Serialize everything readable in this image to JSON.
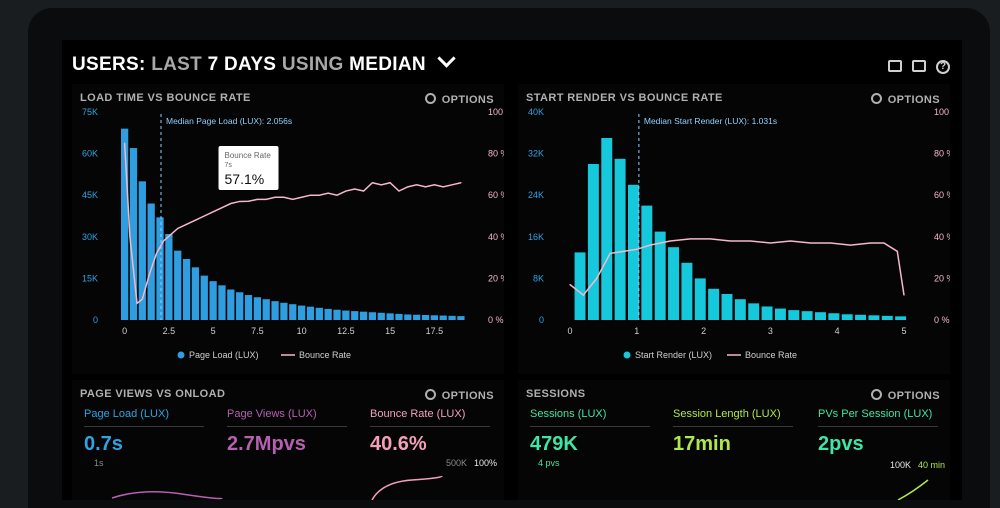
{
  "header": {
    "users": "USERS:",
    "last": "LAST",
    "days": "7 DAYS",
    "using": "USING",
    "median": "MEDIAN"
  },
  "panel1": {
    "title": "LOAD TIME VS BOUNCE RATE",
    "options": "OPTIONS"
  },
  "panel2": {
    "title": "START RENDER VS BOUNCE RATE",
    "options": "OPTIONS"
  },
  "panel3": {
    "title": "PAGE VIEWS VS ONLOAD",
    "options": "OPTIONS",
    "metrics": [
      {
        "label": "Page Load (LUX)",
        "value": "0.7s",
        "color": "#2ea3e6"
      },
      {
        "label": "Page Views (LUX)",
        "value": "2.7Mpvs",
        "color": "#b560b0"
      },
      {
        "label": "Bounce Rate (LUX)",
        "value": "40.6%",
        "color": "#f2a0b8"
      }
    ],
    "footer_left": "1s",
    "footer_mid": "500K",
    "footer_right": "100%"
  },
  "panel4": {
    "title": "SESSIONS",
    "options": "OPTIONS",
    "metrics": [
      {
        "label": "Sessions (LUX)",
        "value": "479K",
        "color": "#3ee6a6"
      },
      {
        "label": "Session Length (LUX)",
        "value": "17min",
        "color": "#b0e84a"
      },
      {
        "label": "PVs Per Session (LUX)",
        "value": "2pvs",
        "color": "#3ee6a6"
      }
    ],
    "footer_left": "4 pvs",
    "footer_mid": "100K",
    "footer_right": "40 min"
  },
  "chart_data": [
    {
      "type": "bar",
      "bar_color": "#2f9ee0",
      "line_color": "#f4b8c8",
      "x_ticks": [
        "0",
        "2.5",
        "5",
        "7.5",
        "10",
        "12.5",
        "15",
        "17.5"
      ],
      "xlim": [
        -0.6,
        19.4
      ],
      "y_left_ticks": [
        "0",
        "15K",
        "30K",
        "45K",
        "60K",
        "75K"
      ],
      "ylim_left": [
        0,
        75000
      ],
      "y_right_ticks": [
        "0 %",
        "20 %",
        "40 %",
        "60 %",
        "80 %",
        "100 %"
      ],
      "ylim_right": [
        0,
        100
      ],
      "bar_x": [
        0,
        0.5,
        1,
        1.5,
        2,
        2.5,
        3,
        3.5,
        4,
        4.5,
        5,
        5.5,
        6,
        6.5,
        7,
        7.5,
        8,
        8.5,
        9,
        9.5,
        10,
        10.5,
        11,
        11.5,
        12,
        12.5,
        13,
        13.5,
        14,
        14.5,
        15,
        15.5,
        16,
        16.5,
        17,
        17.5,
        18,
        18.5,
        19
      ],
      "values": [
        69000,
        62000,
        50000,
        42000,
        37000,
        31000,
        25000,
        22000,
        19000,
        16000,
        14000,
        12500,
        11000,
        10000,
        9000,
        8200,
        7500,
        6800,
        6200,
        5700,
        5200,
        4800,
        4400,
        4000,
        3700,
        3400,
        3200,
        3000,
        2800,
        2600,
        2400,
        2200,
        2000,
        1900,
        1800,
        1700,
        1600,
        1500,
        1400
      ],
      "line_x": [
        0,
        0.3,
        0.7,
        1,
        1.4,
        1.8,
        2.2,
        2.6,
        3,
        3.5,
        4,
        4.5,
        5,
        5.5,
        6,
        6.5,
        7,
        7.5,
        8,
        8.5,
        9,
        9.5,
        10,
        10.5,
        11,
        11.5,
        12,
        12.5,
        13,
        13.5,
        14,
        14.5,
        15,
        15.5,
        16,
        16.5,
        17,
        17.5,
        18,
        18.5,
        19
      ],
      "bounce": [
        85,
        40,
        8,
        10,
        22,
        32,
        38,
        41,
        44,
        46,
        48,
        50,
        52,
        54,
        56,
        57,
        57.1,
        58,
        58,
        59,
        59,
        58,
        59,
        60,
        60,
        61,
        60,
        62,
        63,
        62,
        66,
        65,
        66,
        62,
        64,
        65,
        64,
        65,
        64,
        65,
        66
      ],
      "median_label": "Median Page Load (LUX): 2.056s",
      "median_x": 2.056,
      "tooltip": {
        "label": "Bounce Rate",
        "sub": "7s",
        "value": "57.1%",
        "x": 7
      },
      "legend": [
        {
          "name": "Page Load (LUX)",
          "type": "dot"
        },
        {
          "name": "Bounce Rate",
          "type": "line"
        }
      ]
    },
    {
      "type": "bar",
      "bar_color": "#16c8dc",
      "line_color": "#f4b8c8",
      "x_ticks": [
        "0",
        "1",
        "2",
        "3",
        "4",
        "5"
      ],
      "xlim": [
        -0.15,
        5.15
      ],
      "y_left_ticks": [
        "0",
        "8K",
        "16K",
        "24K",
        "32K",
        "40K"
      ],
      "ylim_left": [
        0,
        40000
      ],
      "y_right_ticks": [
        "0 %",
        "20 %",
        "40 %",
        "60 %",
        "80 %",
        "100 %"
      ],
      "ylim_right": [
        0,
        100
      ],
      "bar_x": [
        0.15,
        0.35,
        0.55,
        0.75,
        0.95,
        1.15,
        1.35,
        1.55,
        1.75,
        1.95,
        2.15,
        2.35,
        2.55,
        2.75,
        2.95,
        3.15,
        3.35,
        3.55,
        3.75,
        3.95,
        4.15,
        4.35,
        4.55,
        4.75,
        4.95
      ],
      "values": [
        13000,
        30000,
        35000,
        31000,
        26000,
        22000,
        17000,
        14000,
        11000,
        8000,
        6000,
        5000,
        4000,
        3200,
        2600,
        2200,
        1900,
        1700,
        1500,
        1300,
        1100,
        1000,
        900,
        800,
        700
      ],
      "line_x": [
        0,
        0.2,
        0.4,
        0.6,
        0.8,
        1.0,
        1.2,
        1.5,
        1.8,
        2.1,
        2.4,
        2.7,
        3.0,
        3.3,
        3.6,
        3.9,
        4.2,
        4.5,
        4.7,
        4.9,
        5.0
      ],
      "bounce": [
        17,
        12,
        20,
        32,
        33,
        34,
        36,
        38,
        39,
        39,
        38,
        38,
        37,
        38,
        37,
        37,
        36,
        37,
        37,
        33,
        12
      ],
      "median_label": "Median Start Render (LUX): 1.031s",
      "median_x": 1.031,
      "legend": [
        {
          "name": "Start Render (LUX)",
          "type": "dot"
        },
        {
          "name": "Bounce Rate",
          "type": "line"
        }
      ]
    }
  ]
}
